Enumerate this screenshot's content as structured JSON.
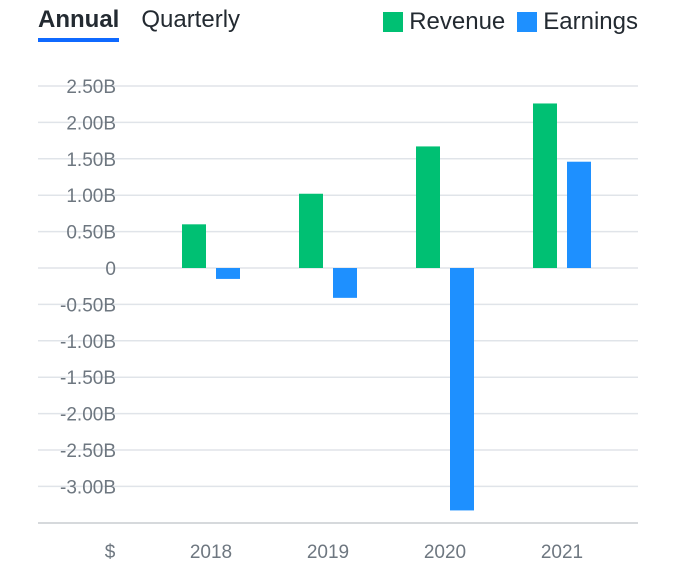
{
  "tabs": [
    {
      "label": "Annual",
      "active": true
    },
    {
      "label": "Quarterly",
      "active": false
    }
  ],
  "legend": [
    {
      "label": "Revenue",
      "color": "#00c073"
    },
    {
      "label": "Earnings",
      "color": "#1e90ff"
    }
  ],
  "currency_label": "$",
  "chart_data": {
    "type": "bar",
    "categories": [
      "2018",
      "2019",
      "2020",
      "2021"
    ],
    "series": [
      {
        "name": "Revenue",
        "color": "#00c073",
        "values": [
          0.6,
          1.02,
          1.67,
          2.26
        ]
      },
      {
        "name": "Earnings",
        "color": "#1e90ff",
        "values": [
          -0.15,
          -0.41,
          -3.33,
          1.46
        ]
      }
    ],
    "yticks": [
      2.5,
      2.0,
      1.5,
      1.0,
      0.5,
      0,
      -0.5,
      -1.0,
      -1.5,
      -2.0,
      -2.5,
      -3.0
    ],
    "ytick_labels": [
      "2.50B",
      "2.00B",
      "1.50B",
      "1.00B",
      "0.50B",
      "0",
      "-0.50B",
      "-1.00B",
      "-1.50B",
      "-2.00B",
      "-2.50B",
      "-3.00B"
    ],
    "ylim": [
      -3.5,
      2.5
    ],
    "unit": "B",
    "grid": true,
    "legend_position": "top-right"
  }
}
